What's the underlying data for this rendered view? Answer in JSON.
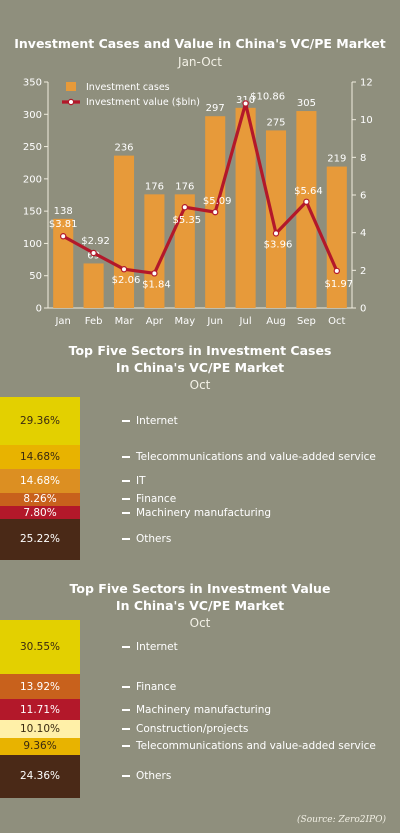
{
  "chart_data": [
    {
      "type": "bar",
      "title": "Investment Cases and Value in China's VC/PE Market",
      "subtitle": "Jan-Oct",
      "categories": [
        "Jan",
        "Feb",
        "Mar",
        "Apr",
        "May",
        "Jun",
        "Jul",
        "Aug",
        "Sep",
        "Oct"
      ],
      "series": [
        {
          "name": "Investment cases",
          "type": "bar",
          "axis": "left",
          "values": [
            138,
            69,
            236,
            176,
            176,
            297,
            310,
            275,
            305,
            219
          ],
          "labels": [
            "138",
            "69",
            "236",
            "176",
            "176",
            "297",
            "310",
            "275",
            "305",
            "219"
          ]
        },
        {
          "name": "Investment value ($bln)",
          "type": "line",
          "axis": "right",
          "values": [
            3.81,
            2.92,
            2.06,
            1.84,
            5.35,
            5.09,
            10.86,
            3.96,
            5.64,
            1.97
          ],
          "labels": [
            "$3.81",
            "$2.92",
            "$2.06",
            "$1.84",
            "$5.35",
            "$5.09",
            "$10.86",
            "$3.96",
            "$5.64",
            "$1.97"
          ]
        }
      ],
      "ylim_left": [
        0,
        350
      ],
      "yticks_left": [
        0,
        50,
        100,
        150,
        200,
        250,
        300,
        350
      ],
      "ylim_right": [
        0,
        12
      ],
      "yticks_right": [
        0,
        2,
        4,
        6,
        8,
        10,
        12
      ],
      "legend": "top-left",
      "colors": {
        "bar": "#e79a3a",
        "line": "#b3182a",
        "marker": "#ffffff"
      }
    },
    {
      "type": "stacked-bar",
      "title_line1": "Top Five Sectors in Investment Cases",
      "title_line2": "In China's VC/PE Market",
      "subtitle": "Oct",
      "segments": [
        {
          "name": "Internet",
          "value": 29.36,
          "label": "29.36%",
          "color": "#e3d000",
          "text_color": "#3a2a10"
        },
        {
          "name": "Telecommunications and value-added service",
          "value": 14.68,
          "label": "14.68%",
          "color": "#e8b300",
          "text_color": "#3a2a10"
        },
        {
          "name": "IT",
          "value": 14.68,
          "label": "14.68%",
          "color": "#dc8f22",
          "text_color": "#ffffff"
        },
        {
          "name": "Finance",
          "value": 8.26,
          "label": "8.26%",
          "color": "#c8611c",
          "text_color": "#ffffff"
        },
        {
          "name": "Machinery manufacturing",
          "value": 7.8,
          "label": "7.80%",
          "color": "#b3182a",
          "text_color": "#ffffff"
        },
        {
          "name": "Others",
          "value": 25.22,
          "label": "25.22%",
          "color": "#4a2917",
          "text_color": "#ffffff"
        }
      ]
    },
    {
      "type": "stacked-bar",
      "title_line1": "Top Five Sectors in Investment Value",
      "title_line2": "In China's VC/PE Market",
      "subtitle": "Oct",
      "segments": [
        {
          "name": "Internet",
          "value": 30.55,
          "label": "30.55%",
          "color": "#e3d000",
          "text_color": "#3a2a10"
        },
        {
          "name": "Finance",
          "value": 13.92,
          "label": "13.92%",
          "color": "#c8611c",
          "text_color": "#ffffff"
        },
        {
          "name": "Machinery manufacturing",
          "value": 11.71,
          "label": "11.71%",
          "color": "#b3182a",
          "text_color": "#ffffff"
        },
        {
          "name": "Construction/projects",
          "value": 10.1,
          "label": "10.10%",
          "color": "#fff0a8",
          "text_color": "#3a2a10"
        },
        {
          "name": "Telecommunications and value-added service",
          "value": 9.36,
          "label": "9.36%",
          "color": "#e8b300",
          "text_color": "#3a2a10"
        },
        {
          "name": "Others",
          "value": 24.36,
          "label": "24.36%",
          "color": "#4a2917",
          "text_color": "#ffffff"
        }
      ]
    }
  ],
  "source": "(Source: Zero2IPO)"
}
